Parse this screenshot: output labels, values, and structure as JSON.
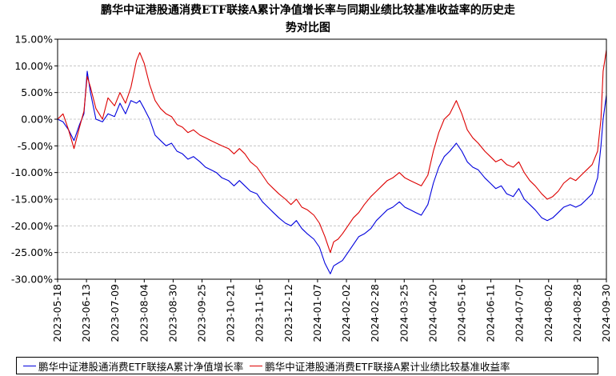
{
  "chart_data": {
    "type": "line",
    "title_lines": [
      "鹏华中证港股通消费ETF联接A累计净值增长率与同期业绩比较基准收益率的历史走",
      "势对比图"
    ],
    "xlabel": "",
    "ylabel": "",
    "ylim": [
      -30,
      15
    ],
    "y_ticks": [
      15,
      10,
      5,
      0,
      -5,
      -10,
      -15,
      -20,
      -25,
      -30
    ],
    "y_tick_labels": [
      "15.00%",
      "10.00%",
      "5.00%",
      "0.00%",
      "-5.00%",
      "-10.00%",
      "-15.00%",
      "-20.00%",
      "-25.00%",
      "-30.00%"
    ],
    "x_range": [
      "2023-05-18",
      "2024-09-30"
    ],
    "x_tick_labels": [
      "2023-05-18",
      "2023-06-13",
      "2023-07-09",
      "2023-08-04",
      "2023-08-30",
      "2023-09-25",
      "2023-10-21",
      "2023-11-16",
      "2023-12-12",
      "2024-01-07",
      "2024-02-02",
      "2024-02-28",
      "2024-03-25",
      "2024-04-20",
      "2024-05-16",
      "2024-06-11",
      "2024-07-07",
      "2024-08-02",
      "2024-08-28",
      "2024-09-30"
    ],
    "grid": true,
    "legend_position": "bottom",
    "series": [
      {
        "name": "鹏华中证港股通消费ETF联接A累计净值增长率",
        "color": "#0000dd",
        "points": [
          [
            "2023-05-18",
            0.0
          ],
          [
            "2023-05-23",
            -0.5
          ],
          [
            "2023-05-28",
            -2.0
          ],
          [
            "2023-06-02",
            -4.0
          ],
          [
            "2023-06-07",
            -1.0
          ],
          [
            "2023-06-11",
            1.0
          ],
          [
            "2023-06-14",
            9.0
          ],
          [
            "2023-06-17",
            5.0
          ],
          [
            "2023-06-22",
            0.0
          ],
          [
            "2023-06-28",
            -0.5
          ],
          [
            "2023-07-03",
            1.0
          ],
          [
            "2023-07-09",
            0.5
          ],
          [
            "2023-07-14",
            3.0
          ],
          [
            "2023-07-19",
            1.0
          ],
          [
            "2023-07-24",
            3.5
          ],
          [
            "2023-07-29",
            3.0
          ],
          [
            "2023-08-01",
            3.5
          ],
          [
            "2023-08-05",
            2.0
          ],
          [
            "2023-08-10",
            0.0
          ],
          [
            "2023-08-15",
            -3.0
          ],
          [
            "2023-08-20",
            -4.0
          ],
          [
            "2023-08-25",
            -5.0
          ],
          [
            "2023-08-30",
            -4.5
          ],
          [
            "2023-09-04",
            -6.0
          ],
          [
            "2023-09-09",
            -6.5
          ],
          [
            "2023-09-14",
            -7.5
          ],
          [
            "2023-09-19",
            -7.0
          ],
          [
            "2023-09-25",
            -8.0
          ],
          [
            "2023-09-30",
            -9.0
          ],
          [
            "2023-10-05",
            -9.5
          ],
          [
            "2023-10-10",
            -10.0
          ],
          [
            "2023-10-15",
            -11.0
          ],
          [
            "2023-10-21",
            -11.5
          ],
          [
            "2023-10-26",
            -12.5
          ],
          [
            "2023-10-31",
            -11.5
          ],
          [
            "2023-11-05",
            -12.5
          ],
          [
            "2023-11-10",
            -13.5
          ],
          [
            "2023-11-16",
            -14.0
          ],
          [
            "2023-11-21",
            -15.5
          ],
          [
            "2023-11-26",
            -16.5
          ],
          [
            "2023-12-01",
            -17.5
          ],
          [
            "2023-12-06",
            -18.5
          ],
          [
            "2023-12-12",
            -19.5
          ],
          [
            "2023-12-17",
            -20.0
          ],
          [
            "2023-12-22",
            -19.0
          ],
          [
            "2023-12-27",
            -20.5
          ],
          [
            "2024-01-01",
            -21.5
          ],
          [
            "2024-01-07",
            -22.5
          ],
          [
            "2024-01-12",
            -24.0
          ],
          [
            "2024-01-17",
            -27.0
          ],
          [
            "2024-01-22",
            -29.0
          ],
          [
            "2024-01-25",
            -27.5
          ],
          [
            "2024-01-29",
            -27.0
          ],
          [
            "2024-02-02",
            -26.5
          ],
          [
            "2024-02-07",
            -25.0
          ],
          [
            "2024-02-12",
            -23.5
          ],
          [
            "2024-02-17",
            -22.0
          ],
          [
            "2024-02-22",
            -21.5
          ],
          [
            "2024-02-28",
            -20.5
          ],
          [
            "2024-03-04",
            -19.0
          ],
          [
            "2024-03-09",
            -18.0
          ],
          [
            "2024-03-14",
            -17.0
          ],
          [
            "2024-03-19",
            -16.5
          ],
          [
            "2024-03-25",
            -15.5
          ],
          [
            "2024-03-30",
            -16.5
          ],
          [
            "2024-04-04",
            -17.0
          ],
          [
            "2024-04-09",
            -17.5
          ],
          [
            "2024-04-14",
            -18.0
          ],
          [
            "2024-04-20",
            -16.0
          ],
          [
            "2024-04-25",
            -12.0
          ],
          [
            "2024-04-30",
            -9.0
          ],
          [
            "2024-05-05",
            -7.0
          ],
          [
            "2024-05-10",
            -6.0
          ],
          [
            "2024-05-16",
            -4.5
          ],
          [
            "2024-05-21",
            -6.0
          ],
          [
            "2024-05-26",
            -8.0
          ],
          [
            "2024-05-31",
            -9.0
          ],
          [
            "2024-06-05",
            -9.5
          ],
          [
            "2024-06-11",
            -11.0
          ],
          [
            "2024-06-16",
            -12.0
          ],
          [
            "2024-06-21",
            -13.0
          ],
          [
            "2024-06-26",
            -12.5
          ],
          [
            "2024-07-01",
            -14.0
          ],
          [
            "2024-07-07",
            -14.5
          ],
          [
            "2024-07-12",
            -13.0
          ],
          [
            "2024-07-17",
            -15.0
          ],
          [
            "2024-07-22",
            -16.0
          ],
          [
            "2024-07-27",
            -17.0
          ],
          [
            "2024-08-02",
            -18.5
          ],
          [
            "2024-08-07",
            -19.0
          ],
          [
            "2024-08-12",
            -18.5
          ],
          [
            "2024-08-17",
            -17.5
          ],
          [
            "2024-08-22",
            -16.5
          ],
          [
            "2024-08-28",
            -16.0
          ],
          [
            "2024-09-02",
            -16.5
          ],
          [
            "2024-09-07",
            -16.0
          ],
          [
            "2024-09-12",
            -15.0
          ],
          [
            "2024-09-17",
            -14.0
          ],
          [
            "2024-09-22",
            -11.0
          ],
          [
            "2024-09-25",
            -5.0
          ],
          [
            "2024-09-27",
            0.0
          ],
          [
            "2024-09-30",
            4.5
          ]
        ]
      },
      {
        "name": "鹏华中证港股通消费ETF联接A累计业绩比较基准收益率",
        "color": "#dd0000",
        "points": [
          [
            "2023-05-18",
            0.0
          ],
          [
            "2023-05-23",
            1.0
          ],
          [
            "2023-05-28",
            -2.0
          ],
          [
            "2023-06-02",
            -5.5
          ],
          [
            "2023-06-07",
            -1.5
          ],
          [
            "2023-06-11",
            1.5
          ],
          [
            "2023-06-14",
            8.0
          ],
          [
            "2023-06-17",
            6.0
          ],
          [
            "2023-06-22",
            2.0
          ],
          [
            "2023-06-28",
            0.0
          ],
          [
            "2023-07-03",
            4.0
          ],
          [
            "2023-07-09",
            2.5
          ],
          [
            "2023-07-14",
            5.0
          ],
          [
            "2023-07-19",
            3.0
          ],
          [
            "2023-07-24",
            6.0
          ],
          [
            "2023-07-29",
            11.0
          ],
          [
            "2023-08-01",
            12.5
          ],
          [
            "2023-08-05",
            10.5
          ],
          [
            "2023-08-10",
            6.5
          ],
          [
            "2023-08-15",
            3.5
          ],
          [
            "2023-08-20",
            2.0
          ],
          [
            "2023-08-25",
            1.0
          ],
          [
            "2023-08-30",
            0.5
          ],
          [
            "2023-09-04",
            -1.0
          ],
          [
            "2023-09-09",
            -1.5
          ],
          [
            "2023-09-14",
            -2.5
          ],
          [
            "2023-09-19",
            -2.0
          ],
          [
            "2023-09-25",
            -3.0
          ],
          [
            "2023-09-30",
            -3.5
          ],
          [
            "2023-10-05",
            -4.0
          ],
          [
            "2023-10-10",
            -4.5
          ],
          [
            "2023-10-15",
            -5.0
          ],
          [
            "2023-10-21",
            -5.5
          ],
          [
            "2023-10-26",
            -6.5
          ],
          [
            "2023-10-31",
            -5.5
          ],
          [
            "2023-11-05",
            -6.5
          ],
          [
            "2023-11-10",
            -8.0
          ],
          [
            "2023-11-16",
            -9.0
          ],
          [
            "2023-11-21",
            -10.5
          ],
          [
            "2023-11-26",
            -12.0
          ],
          [
            "2023-12-01",
            -13.0
          ],
          [
            "2023-12-06",
            -14.0
          ],
          [
            "2023-12-12",
            -15.0
          ],
          [
            "2023-12-17",
            -16.0
          ],
          [
            "2023-12-22",
            -15.0
          ],
          [
            "2023-12-27",
            -16.5
          ],
          [
            "2024-01-01",
            -17.0
          ],
          [
            "2024-01-07",
            -18.0
          ],
          [
            "2024-01-12",
            -19.5
          ],
          [
            "2024-01-17",
            -22.0
          ],
          [
            "2024-01-22",
            -25.0
          ],
          [
            "2024-01-25",
            -23.0
          ],
          [
            "2024-01-29",
            -22.5
          ],
          [
            "2024-02-02",
            -21.5
          ],
          [
            "2024-02-07",
            -20.0
          ],
          [
            "2024-02-12",
            -18.5
          ],
          [
            "2024-02-17",
            -17.5
          ],
          [
            "2024-02-22",
            -16.0
          ],
          [
            "2024-02-28",
            -14.5
          ],
          [
            "2024-03-04",
            -13.5
          ],
          [
            "2024-03-09",
            -12.5
          ],
          [
            "2024-03-14",
            -11.5
          ],
          [
            "2024-03-19",
            -11.0
          ],
          [
            "2024-03-25",
            -10.0
          ],
          [
            "2024-03-30",
            -11.0
          ],
          [
            "2024-04-04",
            -11.5
          ],
          [
            "2024-04-09",
            -12.0
          ],
          [
            "2024-04-14",
            -12.5
          ],
          [
            "2024-04-20",
            -10.5
          ],
          [
            "2024-04-25",
            -6.0
          ],
          [
            "2024-04-30",
            -2.5
          ],
          [
            "2024-05-05",
            0.0
          ],
          [
            "2024-05-10",
            1.0
          ],
          [
            "2024-05-16",
            3.5
          ],
          [
            "2024-05-21",
            1.0
          ],
          [
            "2024-05-26",
            -2.0
          ],
          [
            "2024-05-31",
            -3.5
          ],
          [
            "2024-06-05",
            -4.5
          ],
          [
            "2024-06-11",
            -6.0
          ],
          [
            "2024-06-16",
            -7.0
          ],
          [
            "2024-06-21",
            -8.0
          ],
          [
            "2024-06-26",
            -7.5
          ],
          [
            "2024-07-01",
            -8.5
          ],
          [
            "2024-07-07",
            -9.0
          ],
          [
            "2024-07-12",
            -8.0
          ],
          [
            "2024-07-17",
            -10.0
          ],
          [
            "2024-07-22",
            -11.5
          ],
          [
            "2024-07-27",
            -12.5
          ],
          [
            "2024-08-02",
            -14.0
          ],
          [
            "2024-08-07",
            -15.0
          ],
          [
            "2024-08-12",
            -14.5
          ],
          [
            "2024-08-17",
            -13.5
          ],
          [
            "2024-08-22",
            -12.0
          ],
          [
            "2024-08-28",
            -11.0
          ],
          [
            "2024-09-02",
            -11.5
          ],
          [
            "2024-09-07",
            -10.5
          ],
          [
            "2024-09-12",
            -9.5
          ],
          [
            "2024-09-17",
            -8.5
          ],
          [
            "2024-09-22",
            -6.0
          ],
          [
            "2024-09-25",
            0.0
          ],
          [
            "2024-09-27",
            9.0
          ],
          [
            "2024-09-30",
            13.0
          ]
        ]
      }
    ]
  }
}
